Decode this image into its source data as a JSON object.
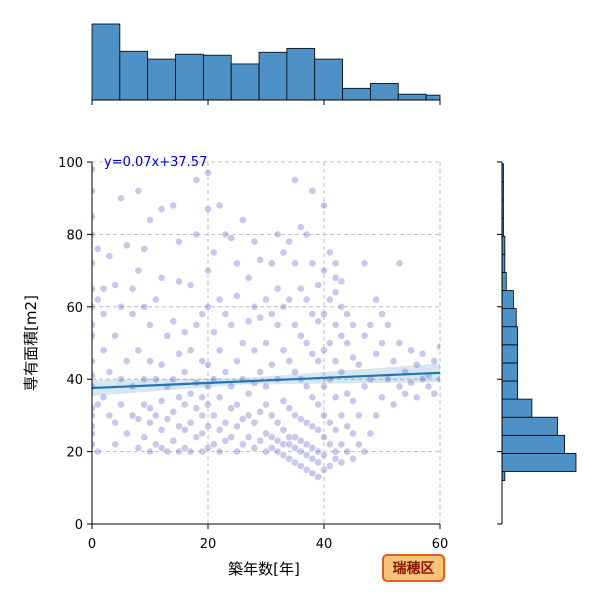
{
  "chart_data": {
    "type": "scatter",
    "xlabel": "築年数[年]",
    "ylabel": "専有面積[m2]",
    "xlim": [
      0,
      60
    ],
    "ylim": [
      0,
      100
    ],
    "x_ticks": [
      "0",
      "20",
      "40",
      "60"
    ],
    "y_ticks": [
      "0",
      "20",
      "40",
      "60",
      "80",
      "100"
    ],
    "grid": true,
    "regression": {
      "label": "y=0.07x+37.57",
      "slope": 0.07,
      "intercept": 37.57,
      "color": "#1f77b4"
    },
    "badge": {
      "label": "瑞穂区",
      "fill": "#f7c27a",
      "border": "#e0601a"
    },
    "point_color": "#3a3ab8",
    "hist_color": "#4e91c6",
    "marginal_x": {
      "bin_edges": [
        0,
        4.8,
        9.6,
        14.4,
        19.2,
        24.0,
        28.8,
        33.6,
        38.4,
        43.2,
        48.0,
        52.8,
        57.6,
        60
      ],
      "counts": [
        78,
        50,
        42,
        47,
        46,
        37,
        49,
        53,
        42,
        12,
        17,
        6,
        5
      ]
    },
    "marginal_y": {
      "bin_edges": [
        12,
        14.5,
        19.5,
        24.5,
        29.5,
        34.5,
        39.5,
        44.5,
        49.5,
        54.5,
        59.5,
        64.5,
        69.5,
        74.5,
        79.5,
        84.5,
        89.5,
        94.5,
        99.5
      ],
      "counts": [
        2,
        52,
        44,
        39,
        21,
        11,
        11,
        11,
        11,
        10,
        8,
        3,
        2,
        2,
        1,
        1,
        1,
        1
      ]
    },
    "points": [
      [
        0,
        27
      ],
      [
        0,
        30
      ],
      [
        0,
        32
      ],
      [
        0,
        38
      ],
      [
        0,
        41
      ],
      [
        0,
        45
      ],
      [
        0,
        52
      ],
      [
        0,
        55
      ],
      [
        0,
        60
      ],
      [
        0,
        65
      ],
      [
        0,
        72
      ],
      [
        0,
        80
      ],
      [
        0,
        85
      ],
      [
        0,
        92
      ],
      [
        0,
        98
      ],
      [
        0,
        25
      ],
      [
        0,
        22
      ],
      [
        1,
        20
      ],
      [
        1,
        33
      ],
      [
        1,
        62
      ],
      [
        1,
        76
      ],
      [
        2,
        35
      ],
      [
        2,
        48
      ],
      [
        2,
        65
      ],
      [
        2,
        58
      ],
      [
        3,
        42
      ],
      [
        3,
        30
      ],
      [
        3,
        74
      ],
      [
        4,
        28
      ],
      [
        4,
        52
      ],
      [
        4,
        22
      ],
      [
        4,
        66
      ],
      [
        5,
        40
      ],
      [
        5,
        90
      ],
      [
        5,
        33
      ],
      [
        5,
        60
      ],
      [
        6,
        25
      ],
      [
        6,
        45
      ],
      [
        6,
        77
      ],
      [
        7,
        30
      ],
      [
        7,
        58
      ],
      [
        7,
        38
      ],
      [
        7,
        65
      ],
      [
        8,
        21
      ],
      [
        8,
        29
      ],
      [
        8,
        48
      ],
      [
        8,
        70
      ],
      [
        8,
        92
      ],
      [
        9,
        24
      ],
      [
        9,
        33
      ],
      [
        9,
        40
      ],
      [
        9,
        60
      ],
      [
        9,
        76
      ],
      [
        10,
        20
      ],
      [
        10,
        28
      ],
      [
        10,
        32
      ],
      [
        10,
        45
      ],
      [
        10,
        55
      ],
      [
        10,
        84
      ],
      [
        11,
        22
      ],
      [
        11,
        30
      ],
      [
        11,
        40
      ],
      [
        11,
        62
      ],
      [
        12,
        21
      ],
      [
        12,
        26
      ],
      [
        12,
        34
      ],
      [
        12,
        44
      ],
      [
        12,
        68
      ],
      [
        12,
        87
      ],
      [
        13,
        20
      ],
      [
        13,
        29
      ],
      [
        13,
        38
      ],
      [
        13,
        52
      ],
      [
        14,
        23
      ],
      [
        14,
        31
      ],
      [
        14,
        40
      ],
      [
        14,
        56
      ],
      [
        14,
        88
      ],
      [
        15,
        20
      ],
      [
        15,
        27
      ],
      [
        15,
        35
      ],
      [
        15,
        47
      ],
      [
        15,
        67
      ],
      [
        15,
        78
      ],
      [
        16,
        21
      ],
      [
        16,
        26
      ],
      [
        16,
        33
      ],
      [
        16,
        42
      ],
      [
        16,
        53
      ],
      [
        17,
        20
      ],
      [
        17,
        28
      ],
      [
        17,
        36
      ],
      [
        17,
        48
      ],
      [
        17,
        66
      ],
      [
        18,
        24
      ],
      [
        18,
        32
      ],
      [
        18,
        39
      ],
      [
        18,
        55
      ],
      [
        18,
        80
      ],
      [
        18,
        95
      ],
      [
        19,
        20
      ],
      [
        19,
        25
      ],
      [
        19,
        30
      ],
      [
        19,
        35
      ],
      [
        19,
        45
      ],
      [
        19,
        58
      ],
      [
        20,
        21
      ],
      [
        20,
        27
      ],
      [
        20,
        33
      ],
      [
        20,
        38
      ],
      [
        20,
        44
      ],
      [
        20,
        60
      ],
      [
        20,
        70
      ],
      [
        20,
        87
      ],
      [
        20,
        97
      ],
      [
        21,
        22
      ],
      [
        21,
        30
      ],
      [
        21,
        40
      ],
      [
        21,
        53
      ],
      [
        21,
        75
      ],
      [
        22,
        20
      ],
      [
        22,
        26
      ],
      [
        22,
        35
      ],
      [
        22,
        48
      ],
      [
        22,
        62
      ],
      [
        22,
        88
      ],
      [
        23,
        23
      ],
      [
        23,
        28
      ],
      [
        23,
        42
      ],
      [
        23,
        58
      ],
      [
        23,
        80
      ],
      [
        24,
        24
      ],
      [
        24,
        32
      ],
      [
        24,
        38
      ],
      [
        24,
        55
      ],
      [
        24,
        79
      ],
      [
        25,
        20
      ],
      [
        25,
        27
      ],
      [
        25,
        33
      ],
      [
        25,
        45
      ],
      [
        25,
        63
      ],
      [
        25,
        72
      ],
      [
        26,
        22
      ],
      [
        26,
        29
      ],
      [
        26,
        40
      ],
      [
        26,
        50
      ],
      [
        26,
        84
      ],
      [
        27,
        24
      ],
      [
        27,
        30
      ],
      [
        27,
        36
      ],
      [
        27,
        56
      ],
      [
        27,
        68
      ],
      [
        28,
        21
      ],
      [
        28,
        28
      ],
      [
        28,
        39
      ],
      [
        28,
        48
      ],
      [
        28,
        60
      ],
      [
        28,
        78
      ],
      [
        29,
        23
      ],
      [
        29,
        31
      ],
      [
        29,
        42
      ],
      [
        29,
        57
      ],
      [
        29,
        73
      ],
      [
        30,
        20
      ],
      [
        30,
        25
      ],
      [
        30,
        33
      ],
      [
        30,
        38
      ],
      [
        30,
        50
      ],
      [
        30,
        62
      ],
      [
        31,
        21
      ],
      [
        31,
        24
      ],
      [
        31,
        30
      ],
      [
        31,
        44
      ],
      [
        31,
        58
      ],
      [
        31,
        72
      ],
      [
        32,
        20
      ],
      [
        32,
        23
      ],
      [
        32,
        28
      ],
      [
        32,
        40
      ],
      [
        32,
        55
      ],
      [
        32,
        65
      ],
      [
        32,
        80
      ],
      [
        33,
        19
      ],
      [
        33,
        22
      ],
      [
        33,
        26
      ],
      [
        33,
        34
      ],
      [
        33,
        48
      ],
      [
        33,
        60
      ],
      [
        33,
        75
      ],
      [
        34,
        18
      ],
      [
        34,
        22
      ],
      [
        34,
        24
      ],
      [
        34,
        32
      ],
      [
        34,
        45
      ],
      [
        34,
        62
      ],
      [
        34,
        78
      ],
      [
        35,
        17
      ],
      [
        35,
        21
      ],
      [
        35,
        24
      ],
      [
        35,
        30
      ],
      [
        35,
        42
      ],
      [
        35,
        55
      ],
      [
        35,
        72
      ],
      [
        35,
        95
      ],
      [
        36,
        16
      ],
      [
        36,
        20
      ],
      [
        36,
        23
      ],
      [
        36,
        29
      ],
      [
        36,
        40
      ],
      [
        36,
        52
      ],
      [
        36,
        65
      ],
      [
        36,
        82
      ],
      [
        37,
        15
      ],
      [
        37,
        19
      ],
      [
        37,
        22
      ],
      [
        37,
        28
      ],
      [
        37,
        38
      ],
      [
        37,
        50
      ],
      [
        37,
        62
      ],
      [
        37,
        80
      ],
      [
        38,
        14
      ],
      [
        38,
        18
      ],
      [
        38,
        21
      ],
      [
        38,
        27
      ],
      [
        38,
        35
      ],
      [
        38,
        47
      ],
      [
        38,
        58
      ],
      [
        38,
        72
      ],
      [
        38,
        92
      ],
      [
        39,
        13
      ],
      [
        39,
        17
      ],
      [
        39,
        20
      ],
      [
        39,
        26
      ],
      [
        39,
        33
      ],
      [
        39,
        45
      ],
      [
        39,
        56
      ],
      [
        39,
        66
      ],
      [
        40,
        15
      ],
      [
        40,
        19
      ],
      [
        40,
        24
      ],
      [
        40,
        30
      ],
      [
        40,
        38
      ],
      [
        40,
        48
      ],
      [
        40,
        58
      ],
      [
        40,
        70
      ],
      [
        40,
        88
      ],
      [
        41,
        16
      ],
      [
        41,
        22
      ],
      [
        41,
        28
      ],
      [
        41,
        40
      ],
      [
        41,
        50
      ],
      [
        41,
        62
      ],
      [
        41,
        75
      ],
      [
        42,
        18
      ],
      [
        42,
        20
      ],
      [
        42,
        26
      ],
      [
        42,
        35
      ],
      [
        42,
        45
      ],
      [
        42,
        55
      ],
      [
        42,
        64
      ],
      [
        42,
        68
      ],
      [
        42,
        72
      ],
      [
        43,
        17
      ],
      [
        43,
        22
      ],
      [
        43,
        30
      ],
      [
        43,
        42
      ],
      [
        43,
        52
      ],
      [
        43,
        60
      ],
      [
        43,
        67
      ],
      [
        44,
        20
      ],
      [
        44,
        27
      ],
      [
        44,
        36
      ],
      [
        44,
        50
      ],
      [
        44,
        58
      ],
      [
        45,
        18
      ],
      [
        45,
        25
      ],
      [
        45,
        34
      ],
      [
        45,
        46
      ],
      [
        45,
        55
      ],
      [
        46,
        22
      ],
      [
        46,
        30
      ],
      [
        46,
        44
      ],
      [
        47,
        20
      ],
      [
        47,
        38
      ],
      [
        47,
        52
      ],
      [
        47,
        72
      ],
      [
        48,
        25
      ],
      [
        48,
        40
      ],
      [
        48,
        55
      ],
      [
        49,
        30
      ],
      [
        49,
        47
      ],
      [
        49,
        62
      ],
      [
        50,
        35
      ],
      [
        50,
        50
      ],
      [
        50,
        58
      ],
      [
        51,
        40
      ],
      [
        51,
        55
      ],
      [
        52,
        33
      ],
      [
        52,
        45
      ],
      [
        53,
        38
      ],
      [
        53,
        50
      ],
      [
        53,
        72
      ],
      [
        54,
        42
      ],
      [
        54,
        36
      ],
      [
        55,
        39
      ],
      [
        55,
        48
      ],
      [
        56,
        35
      ],
      [
        56,
        44
      ],
      [
        57,
        40
      ],
      [
        57,
        47
      ],
      [
        58,
        38
      ],
      [
        58,
        41
      ],
      [
        59,
        36
      ],
      [
        59,
        45
      ],
      [
        60,
        40
      ],
      [
        60,
        49
      ]
    ]
  }
}
